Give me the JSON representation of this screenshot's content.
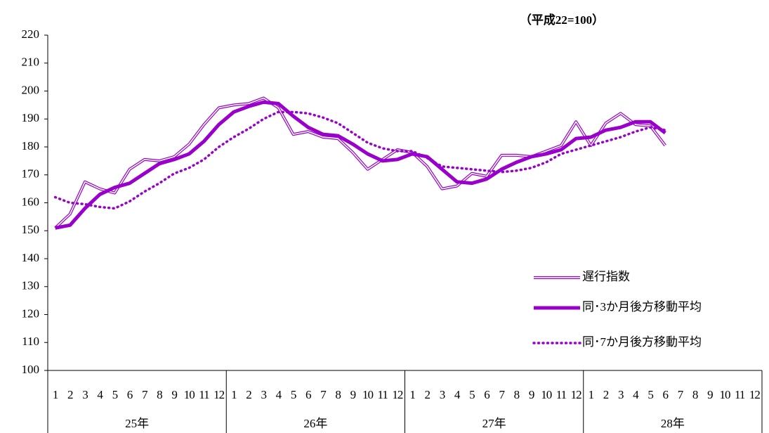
{
  "chart_data": {
    "type": "line",
    "unit_label": "（平成22=100）",
    "categories": [
      "1",
      "2",
      "3",
      "4",
      "5",
      "6",
      "7",
      "8",
      "9",
      "10",
      "11",
      "12",
      "1",
      "2",
      "3",
      "4",
      "5",
      "6",
      "7",
      "8",
      "9",
      "10",
      "11",
      "12",
      "1",
      "2",
      "3",
      "4",
      "5",
      "6",
      "7",
      "8",
      "9",
      "10",
      "11",
      "12",
      "1",
      "2",
      "3",
      "4",
      "5",
      "6",
      "7",
      "8",
      "9",
      "10",
      "11",
      "12"
    ],
    "year_labels": [
      "25年",
      "26年",
      "27年",
      "28年"
    ],
    "ylim": [
      100,
      220
    ],
    "yticks": [
      100,
      110,
      120,
      130,
      140,
      150,
      160,
      170,
      180,
      190,
      200,
      210,
      220
    ],
    "series": [
      {
        "name": "遅行指数",
        "color": "#9900cc",
        "style": "double",
        "values": [
          151,
          156,
          167.5,
          165,
          163.5,
          172,
          175.5,
          175,
          176.5,
          181,
          188,
          194,
          195,
          195.5,
          197.5,
          194,
          184.5,
          185.5,
          183.5,
          183,
          178,
          172,
          175.5,
          179,
          178,
          173,
          165,
          166,
          170.5,
          169.5,
          177,
          177,
          176.5,
          178.5,
          180.5,
          189,
          180.5,
          188.5,
          192,
          188,
          187.5,
          180.5,
          null,
          null,
          null,
          null,
          null,
          null
        ]
      },
      {
        "name": "同･3か月後方移動平均",
        "color": "#9900cc",
        "style": "thick",
        "values": [
          151,
          152,
          158,
          163,
          165.5,
          167,
          170.5,
          174,
          175.5,
          177.5,
          182,
          188,
          192.5,
          194.5,
          196,
          195.5,
          191,
          187,
          184.5,
          184,
          181,
          177.5,
          175,
          175.5,
          177.5,
          176.5,
          172,
          167.5,
          167,
          168.5,
          172,
          174.5,
          176.5,
          177.5,
          179,
          183,
          183.5,
          186,
          187,
          189,
          189,
          185,
          null,
          null,
          null,
          null,
          null,
          null
        ]
      },
      {
        "name": "同･7か月後方移動平均",
        "color": "#9900cc",
        "style": "dotted",
        "values": [
          162,
          160,
          159.5,
          158.5,
          158,
          160.5,
          164,
          167,
          170.5,
          172.5,
          175.5,
          180,
          183.5,
          186.5,
          190,
          192.5,
          192.5,
          192,
          190.5,
          188.5,
          185,
          181.5,
          179.5,
          178.5,
          178.5,
          176,
          173,
          172.5,
          172,
          171.5,
          171,
          171.5,
          172.5,
          174.5,
          177.5,
          179,
          180.5,
          182,
          183.5,
          185.5,
          187,
          186,
          null,
          null,
          null,
          null,
          null,
          null
        ]
      }
    ]
  }
}
